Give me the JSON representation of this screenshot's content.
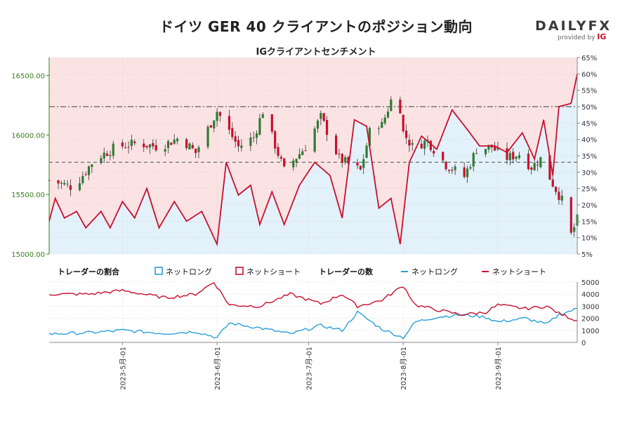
{
  "header": {
    "title": "ドイツ GER 40 クライアントのポジション動向",
    "subtitle": "IGクライアントセンチメント"
  },
  "logo": {
    "brand": "DAILYFX",
    "provided_by": "provided by",
    "provider": "IG"
  },
  "colors": {
    "long": "#2a9fd8",
    "short": "#c8102e",
    "up": "#2e7d32",
    "down": "#c8102e",
    "bg_short": "#fbe3e4",
    "bg_long": "#e3f1fa",
    "price_axis": "#3a7d1c"
  },
  "legend": {
    "ratio_title": "トレーダーの割合",
    "ratio_long": "ネットロング",
    "ratio_short": "ネットショート",
    "count_title": "トレーダーの数",
    "count_long": "ネットロング",
    "count_short": "ネットショート"
  },
  "chart_data": [
    {
      "type": "candlestick",
      "title": "IGクライアントセンチメント",
      "x_range": [
        "2023-04-07",
        "2023-09-27"
      ],
      "price_axis": {
        "side": "left",
        "range": [
          15000,
          16650
        ],
        "ticks": [
          15000,
          15500,
          16000,
          16500
        ],
        "tick_labels": [
          "15000.00",
          "15500.00",
          "16000.00",
          "16500.00"
        ]
      },
      "percent_axis": {
        "side": "right",
        "range": [
          5,
          65
        ],
        "ticks": [
          5,
          10,
          15,
          20,
          25,
          30,
          35,
          40,
          45,
          50,
          55,
          60,
          65
        ],
        "tick_labels": [
          "5%",
          "10%",
          "15%",
          "20%",
          "25%",
          "30%",
          "35%",
          "40%",
          "45%",
          "50%",
          "55%",
          "60%",
          "65%"
        ]
      },
      "reference_lines_percent": [
        50,
        33
      ],
      "price_close_anchors": [
        [
          "2023-04-07",
          15620
        ],
        [
          "2023-04-15",
          15560
        ],
        [
          "2023-04-22",
          15800
        ],
        [
          "2023-04-29",
          15900
        ],
        [
          "2023-05-06",
          15930
        ],
        [
          "2023-05-13",
          15900
        ],
        [
          "2023-05-20",
          15980
        ],
        [
          "2023-05-25",
          15850
        ],
        [
          "2023-06-01",
          16200
        ],
        [
          "2023-06-08",
          15900
        ],
        [
          "2023-06-13",
          15980
        ],
        [
          "2023-06-16",
          16200
        ],
        [
          "2023-06-23",
          15700
        ],
        [
          "2023-06-30",
          15900
        ],
        [
          "2023-07-05",
          16150
        ],
        [
          "2023-07-11",
          15800
        ],
        [
          "2023-07-18",
          15700
        ],
        [
          "2023-07-22",
          16130
        ],
        [
          "2023-07-25",
          16080
        ],
        [
          "2023-07-30",
          16430
        ],
        [
          "2023-08-01",
          16020
        ],
        [
          "2023-08-04",
          15900
        ],
        [
          "2023-08-09",
          15950
        ],
        [
          "2023-08-15",
          15750
        ],
        [
          "2023-08-21",
          15650
        ],
        [
          "2023-08-25",
          15880
        ],
        [
          "2023-08-30",
          15900
        ],
        [
          "2023-09-03",
          15800
        ],
        [
          "2023-09-08",
          15840
        ],
        [
          "2023-09-12",
          15730
        ],
        [
          "2023-09-15",
          15800
        ],
        [
          "2023-09-19",
          15590
        ],
        [
          "2023-09-22",
          15450
        ],
        [
          "2023-09-25",
          15160
        ],
        [
          "2023-09-27",
          15290
        ]
      ],
      "net_long_percent_anchors": [
        [
          "2023-04-07",
          15
        ],
        [
          "2023-04-09",
          22
        ],
        [
          "2023-04-12",
          16
        ],
        [
          "2023-04-16",
          18
        ],
        [
          "2023-04-19",
          13
        ],
        [
          "2023-04-24",
          18
        ],
        [
          "2023-04-27",
          13
        ],
        [
          "2023-05-01",
          21
        ],
        [
          "2023-05-05",
          16
        ],
        [
          "2023-05-09",
          25
        ],
        [
          "2023-05-13",
          13
        ],
        [
          "2023-05-18",
          21
        ],
        [
          "2023-05-22",
          15
        ],
        [
          "2023-05-27",
          18
        ],
        [
          "2023-06-01",
          8
        ],
        [
          "2023-06-04",
          33
        ],
        [
          "2023-06-08",
          23
        ],
        [
          "2023-06-12",
          26
        ],
        [
          "2023-06-15",
          14
        ],
        [
          "2023-06-19",
          24
        ],
        [
          "2023-06-23",
          14
        ],
        [
          "2023-06-28",
          26
        ],
        [
          "2023-07-03",
          33
        ],
        [
          "2023-07-08",
          29
        ],
        [
          "2023-07-12",
          16
        ],
        [
          "2023-07-16",
          46
        ],
        [
          "2023-07-20",
          44
        ],
        [
          "2023-07-24",
          19
        ],
        [
          "2023-07-28",
          22
        ],
        [
          "2023-07-31",
          8
        ],
        [
          "2023-08-03",
          33
        ],
        [
          "2023-08-07",
          41
        ],
        [
          "2023-08-12",
          37
        ],
        [
          "2023-08-17",
          49
        ],
        [
          "2023-08-22",
          43
        ],
        [
          "2023-08-26",
          38
        ],
        [
          "2023-08-31",
          38
        ],
        [
          "2023-09-04",
          36
        ],
        [
          "2023-09-09",
          42
        ],
        [
          "2023-09-13",
          34
        ],
        [
          "2023-09-16",
          46
        ],
        [
          "2023-09-19",
          29
        ],
        [
          "2023-09-21",
          50
        ],
        [
          "2023-09-25",
          51
        ],
        [
          "2023-09-27",
          60
        ]
      ]
    },
    {
      "type": "line",
      "title": "トレーダーの数",
      "x_range": [
        "2023-04-07",
        "2023-09-27"
      ],
      "y_range": [
        0,
        5000
      ],
      "ticks": [
        0,
        1000,
        2000,
        3000,
        4000,
        5000
      ],
      "tick_labels": [
        "0",
        "1000",
        "2000",
        "3000",
        "4000",
        "5000"
      ],
      "x_ticks": [
        {
          "date": "2023-05-01",
          "label": "2023-5月-01"
        },
        {
          "date": "2023-06-01",
          "label": "2023-6月-01"
        },
        {
          "date": "2023-07-01",
          "label": "2023-7月-01"
        },
        {
          "date": "2023-08-01",
          "label": "2023-8月-01"
        },
        {
          "date": "2023-09-01",
          "label": "2023-9月-01"
        }
      ],
      "series": [
        {
          "name": "ネットロング",
          "anchors": [
            [
              "2023-04-07",
              700
            ],
            [
              "2023-04-20",
              800
            ],
            [
              "2023-05-01",
              1000
            ],
            [
              "2023-05-15",
              750
            ],
            [
              "2023-05-25",
              900
            ],
            [
              "2023-06-01",
              400
            ],
            [
              "2023-06-05",
              1600
            ],
            [
              "2023-06-15",
              1200
            ],
            [
              "2023-06-25",
              700
            ],
            [
              "2023-07-05",
              1400
            ],
            [
              "2023-07-12",
              1000
            ],
            [
              "2023-07-17",
              2500
            ],
            [
              "2023-07-25",
              1100
            ],
            [
              "2023-08-01",
              400
            ],
            [
              "2023-08-05",
              1700
            ],
            [
              "2023-08-12",
              2100
            ],
            [
              "2023-08-20",
              2300
            ],
            [
              "2023-08-28",
              2100
            ],
            [
              "2023-09-01",
              1700
            ],
            [
              "2023-09-10",
              2000
            ],
            [
              "2023-09-17",
              1500
            ],
            [
              "2023-09-21",
              2300
            ],
            [
              "2023-09-27",
              2800
            ]
          ]
        },
        {
          "name": "ネットショート",
          "anchors": [
            [
              "2023-04-07",
              4000
            ],
            [
              "2023-04-20",
              4000
            ],
            [
              "2023-05-01",
              4300
            ],
            [
              "2023-05-15",
              3700
            ],
            [
              "2023-05-25",
              4000
            ],
            [
              "2023-05-31",
              5000
            ],
            [
              "2023-06-05",
              3100
            ],
            [
              "2023-06-15",
              3000
            ],
            [
              "2023-06-25",
              4000
            ],
            [
              "2023-07-05",
              3200
            ],
            [
              "2023-07-12",
              4000
            ],
            [
              "2023-07-17",
              3000
            ],
            [
              "2023-07-25",
              3500
            ],
            [
              "2023-08-01",
              4700
            ],
            [
              "2023-08-05",
              3100
            ],
            [
              "2023-08-12",
              2700
            ],
            [
              "2023-08-20",
              2300
            ],
            [
              "2023-08-28",
              2500
            ],
            [
              "2023-09-01",
              3100
            ],
            [
              "2023-09-10",
              2800
            ],
            [
              "2023-09-17",
              3000
            ],
            [
              "2023-09-21",
              2400
            ],
            [
              "2023-09-27",
              1800
            ]
          ]
        }
      ]
    }
  ]
}
